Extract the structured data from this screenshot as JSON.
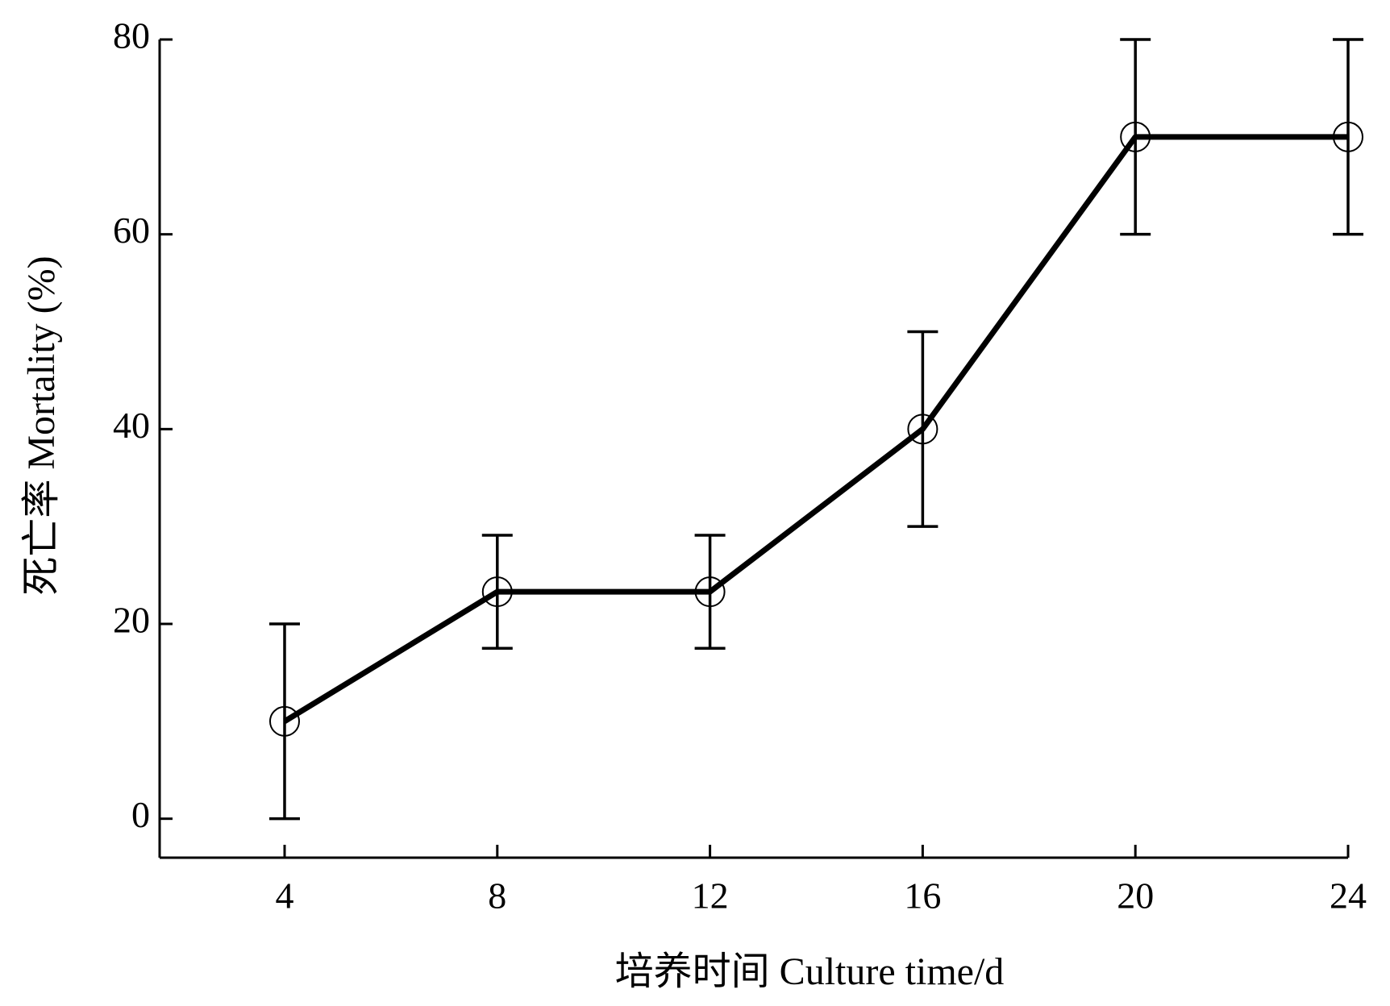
{
  "chart_data": {
    "type": "line",
    "x_label": "培养时间  Culture time/d",
    "y_label": "死亡率  Mortality (%)",
    "x": [
      4,
      8,
      12,
      16,
      20,
      24
    ],
    "values": [
      10,
      23.3,
      23.3,
      40,
      70,
      70
    ],
    "errors": [
      10,
      5.8,
      5.8,
      10,
      10,
      10
    ],
    "color": "#000000",
    "xlim": [
      1.65,
      24
    ],
    "xticks": [
      4,
      8,
      12,
      16,
      20,
      24
    ],
    "ylim": [
      -4,
      80
    ],
    "yticks": [
      0,
      20,
      40,
      60,
      80
    ]
  }
}
